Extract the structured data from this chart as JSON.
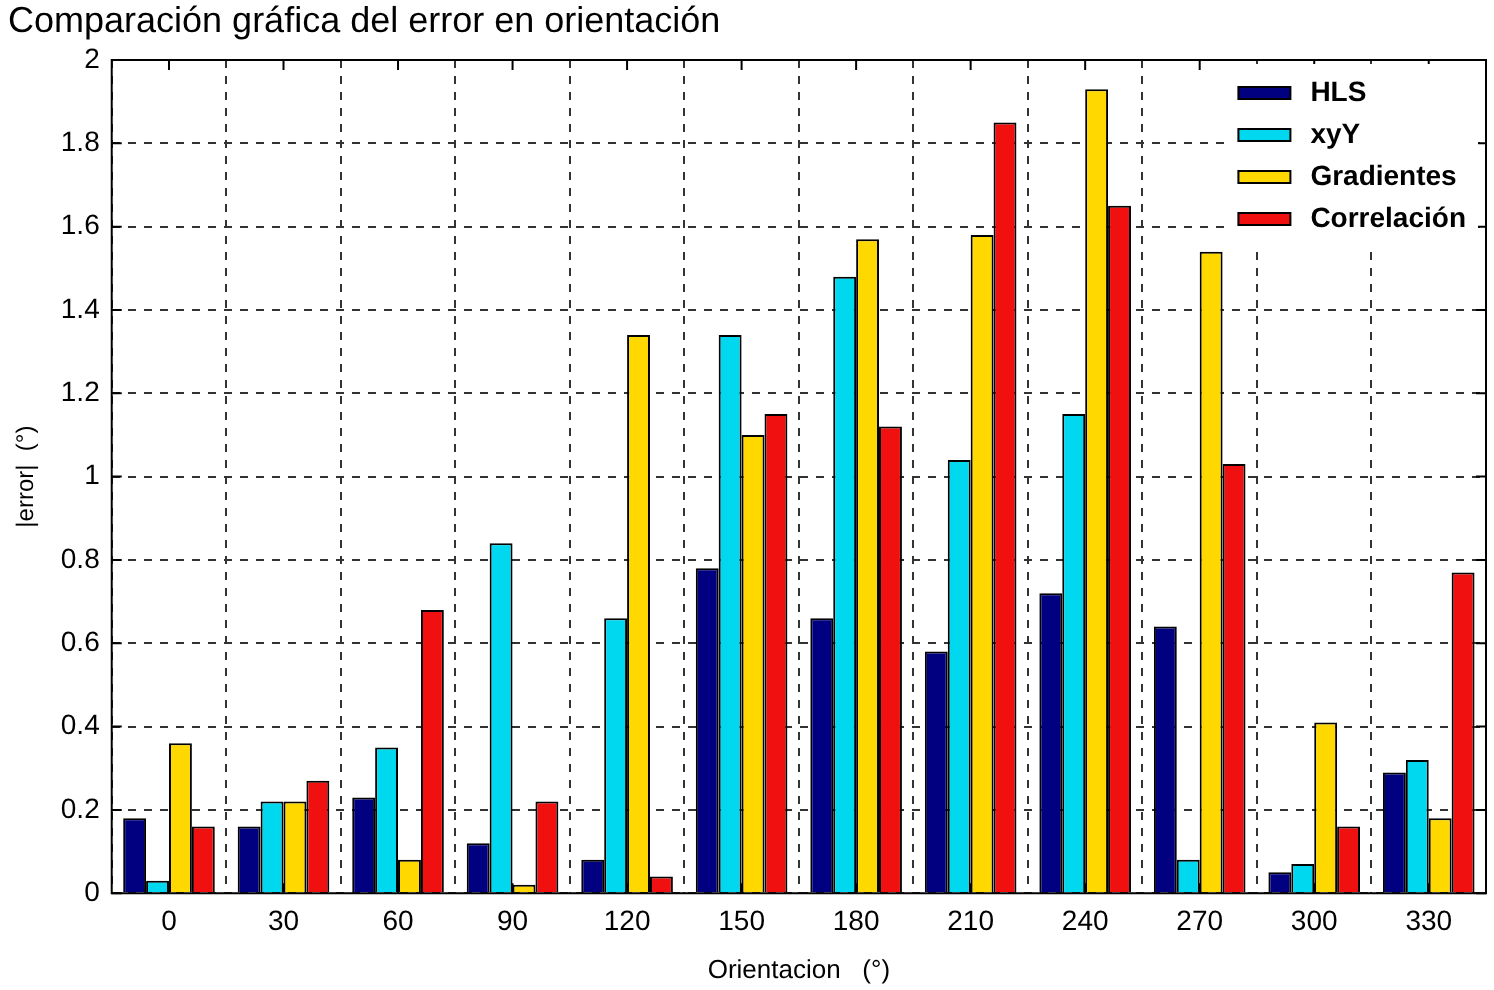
{
  "chart_data": {
    "type": "bar",
    "title": "Comparación gráfica del error en orientación",
    "xlabel": "Orientacion   (°)",
    "ylabel": "|error|  (°)",
    "categories": [
      "0",
      "30",
      "60",
      "90",
      "120",
      "150",
      "180",
      "210",
      "240",
      "270",
      "300",
      "330"
    ],
    "series": [
      {
        "name": "HLS",
        "color": "#000080",
        "values": [
          0.18,
          0.16,
          0.23,
          0.12,
          0.08,
          0.78,
          0.66,
          0.58,
          0.72,
          0.64,
          0.05,
          0.29
        ]
      },
      {
        "name": "xyY",
        "color": "#00d8f0",
        "values": [
          0.03,
          0.22,
          0.35,
          0.84,
          0.66,
          1.34,
          1.48,
          1.04,
          1.15,
          0.08,
          0.07,
          0.32
        ]
      },
      {
        "name": "Gradientes",
        "color": "#ffd800",
        "values": [
          0.36,
          0.22,
          0.08,
          0.02,
          1.34,
          1.1,
          1.57,
          1.58,
          1.93,
          1.54,
          0.41,
          0.18
        ]
      },
      {
        "name": "Correlación",
        "color": "#f01010",
        "values": [
          0.16,
          0.27,
          0.68,
          0.22,
          0.04,
          1.15,
          1.12,
          1.85,
          1.65,
          1.03,
          0.16,
          0.77
        ]
      }
    ],
    "ylim": [
      0,
      2
    ],
    "yticks": [
      0,
      {
        "value": 0.2,
        "label": "0.2"
      },
      {
        "value": 0.4,
        "label": "0.4"
      },
      {
        "value": 0.6,
        "label": "0.6"
      },
      {
        "value": 0.8,
        "label": "0.8"
      },
      1,
      {
        "value": 1.2,
        "label": "1.2"
      },
      {
        "value": 1.4,
        "label": "1.4"
      },
      {
        "value": 1.6,
        "label": "1.6"
      },
      {
        "value": 1.8,
        "label": "1.8"
      },
      2
    ],
    "grid": true,
    "legend": "top right"
  }
}
